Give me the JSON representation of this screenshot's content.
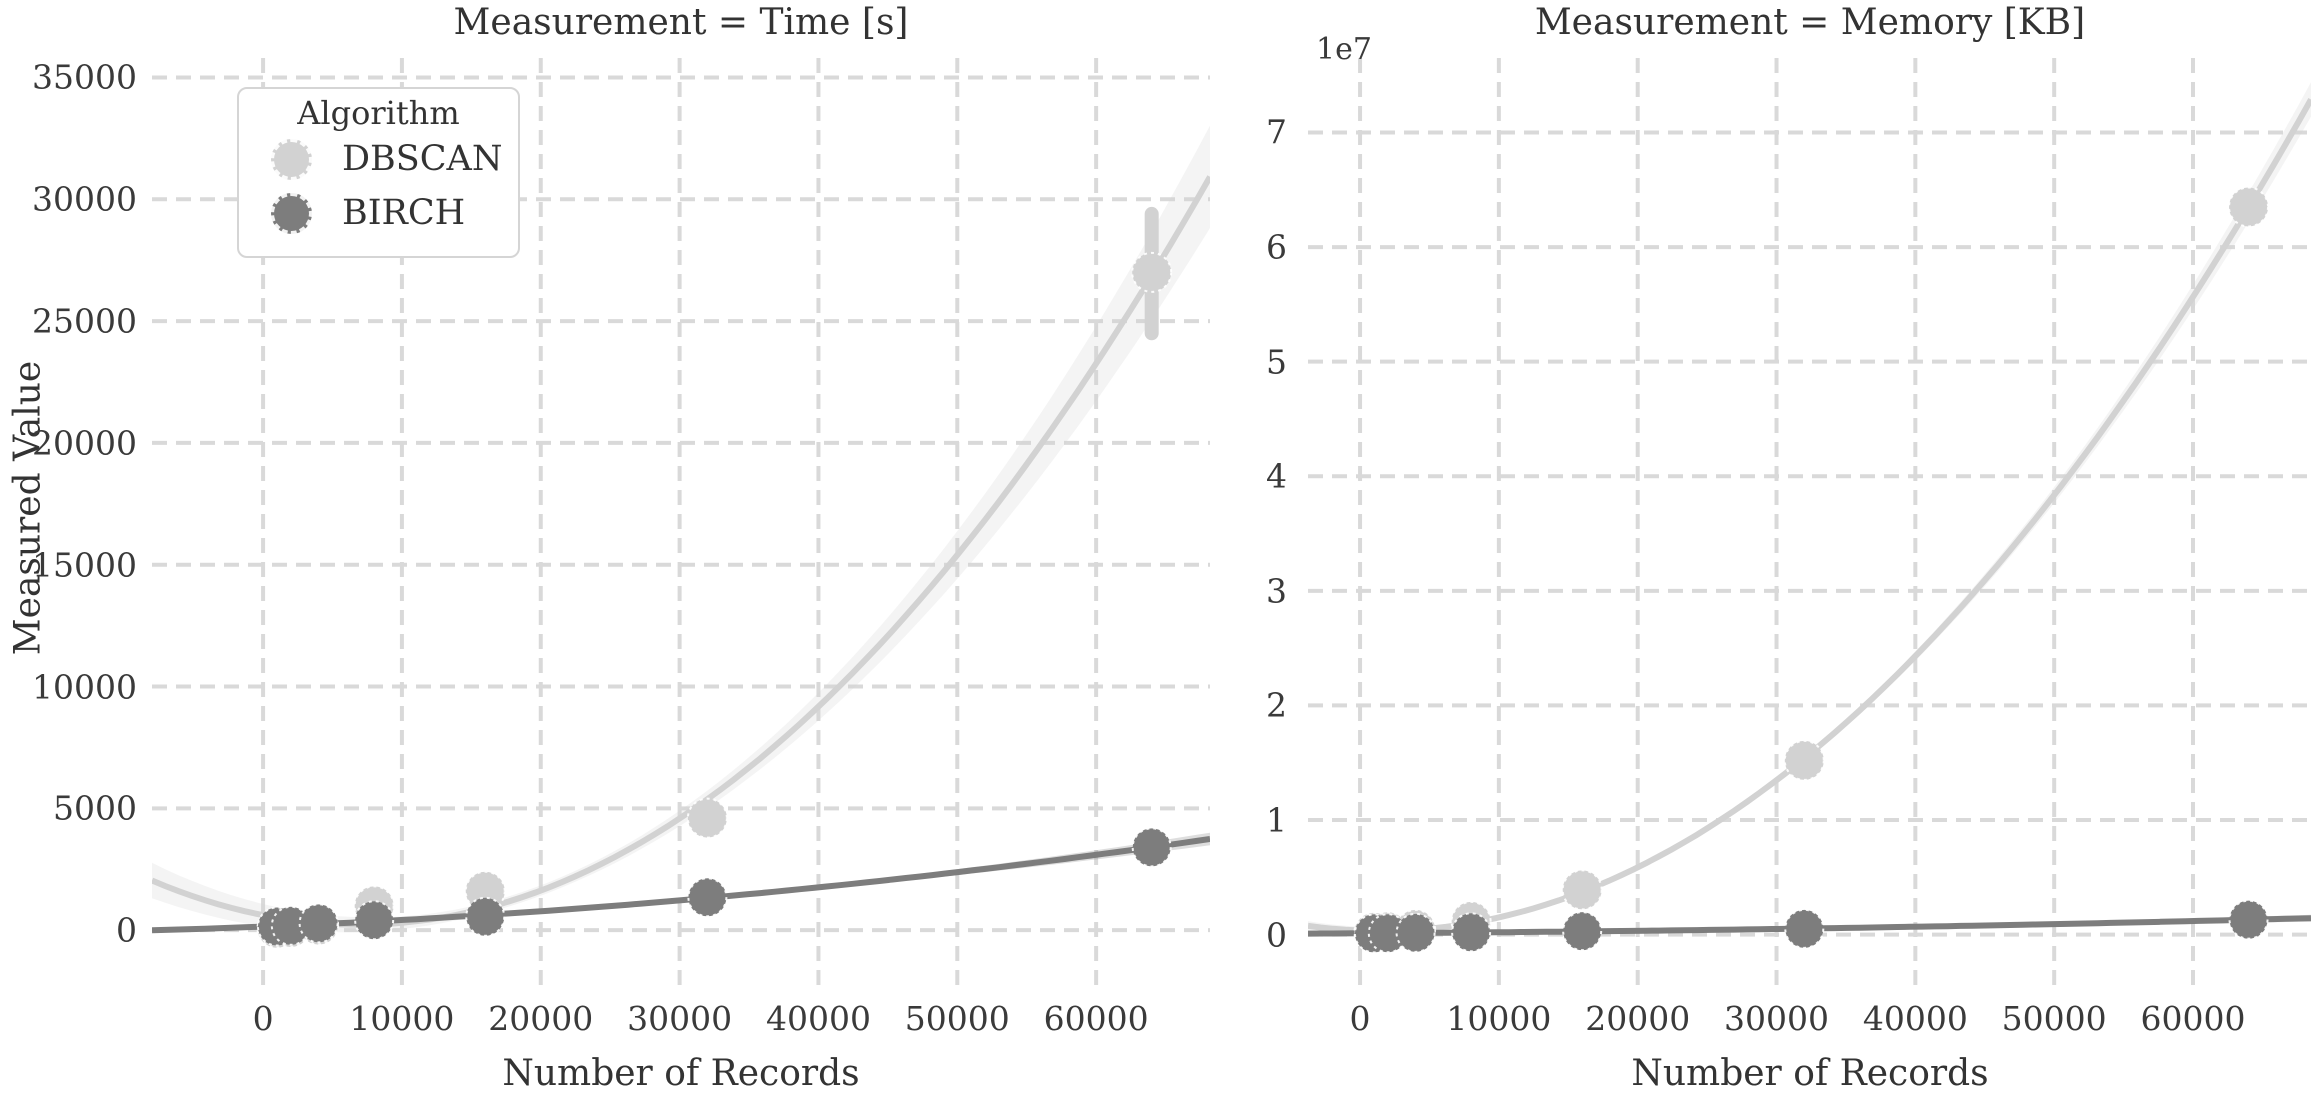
{
  "figure": {
    "background": "#ffffff",
    "text_color": "#333333",
    "grid_color": "#d9d9d9"
  },
  "legend": {
    "title": "Algorithm",
    "entries": [
      {
        "label": "DBSCAN",
        "color": "#d2d2d2"
      },
      {
        "label": "BIRCH",
        "color": "#7d7d7d"
      }
    ]
  },
  "chart_data": [
    {
      "type": "scatter",
      "title": "Measurement = Time [s]",
      "xlabel": "Number of Records",
      "ylabel": "Measured Value",
      "grid": "dashed",
      "legend_position": "upper left",
      "x_ticks": [
        0,
        10000,
        20000,
        30000,
        40000,
        50000,
        60000
      ],
      "x_tick_labels": [
        "0",
        "10000",
        "20000",
        "30000",
        "40000",
        "50000",
        "60000"
      ],
      "y_ticks": [
        0,
        5000,
        10000,
        15000,
        20000,
        25000,
        30000,
        35000
      ],
      "y_tick_labels": [
        "0",
        "5000",
        "10000",
        "15000",
        "20000",
        "25000",
        "30000",
        "35000"
      ],
      "xlim": [
        -8000,
        68200
      ],
      "ylim": [
        -2250,
        35800
      ],
      "series": [
        {
          "name": "DBSCAN",
          "color": "#d2d2d2",
          "fit": "quadratic",
          "ci_halfwidth": 2100,
          "x": [
            1000,
            2000,
            4000,
            8000,
            16000,
            32000,
            64000
          ],
          "y": [
            80,
            110,
            210,
            1000,
            1600,
            4600,
            27000
          ],
          "error_bars": [
            {
              "x": 64000,
              "low": 24500,
              "high": 29400
            }
          ]
        },
        {
          "name": "BIRCH",
          "color": "#7d7d7d",
          "fit": "quadratic",
          "ci_halfwidth": 260,
          "x": [
            1000,
            2000,
            4000,
            8000,
            16000,
            32000,
            64000
          ],
          "y": [
            150,
            180,
            280,
            410,
            550,
            1350,
            3400
          ],
          "error_bars": []
        }
      ]
    },
    {
      "type": "scatter",
      "title": "Measurement = Memory [KB]",
      "xlabel": "Number of Records",
      "ylabel": "Measured Value",
      "y_offset_text": "1e7",
      "grid": "dashed",
      "x_ticks": [
        0,
        10000,
        20000,
        30000,
        40000,
        50000,
        60000
      ],
      "x_tick_labels": [
        "0",
        "10000",
        "20000",
        "30000",
        "40000",
        "50000",
        "60000"
      ],
      "y_ticks": [
        0,
        10000000,
        20000000,
        30000000,
        40000000,
        50000000,
        60000000,
        70000000
      ],
      "y_tick_labels": [
        "0",
        "1",
        "2",
        "3",
        "4",
        "5",
        "6",
        "7"
      ],
      "xlim": [
        -3750,
        68500
      ],
      "ylim": [
        -4400000,
        76500000
      ],
      "series": [
        {
          "name": "DBSCAN",
          "color": "#d2d2d2",
          "fit": "quadratic",
          "ci_halfwidth": 1500000,
          "x": [
            1000,
            2000,
            4000,
            8000,
            16000,
            32000,
            64000
          ],
          "y": [
            200000,
            250000,
            450000,
            1150000,
            3900000,
            15200000,
            63500000
          ],
          "error_bars": []
        },
        {
          "name": "BIRCH",
          "color": "#7d7d7d",
          "fit": "quadratic",
          "ci_halfwidth": 300000,
          "x": [
            1000,
            2000,
            4000,
            8000,
            16000,
            32000,
            64000
          ],
          "y": [
            100000,
            120000,
            150000,
            200000,
            300000,
            500000,
            1300000
          ],
          "error_bars": []
        }
      ]
    }
  ]
}
